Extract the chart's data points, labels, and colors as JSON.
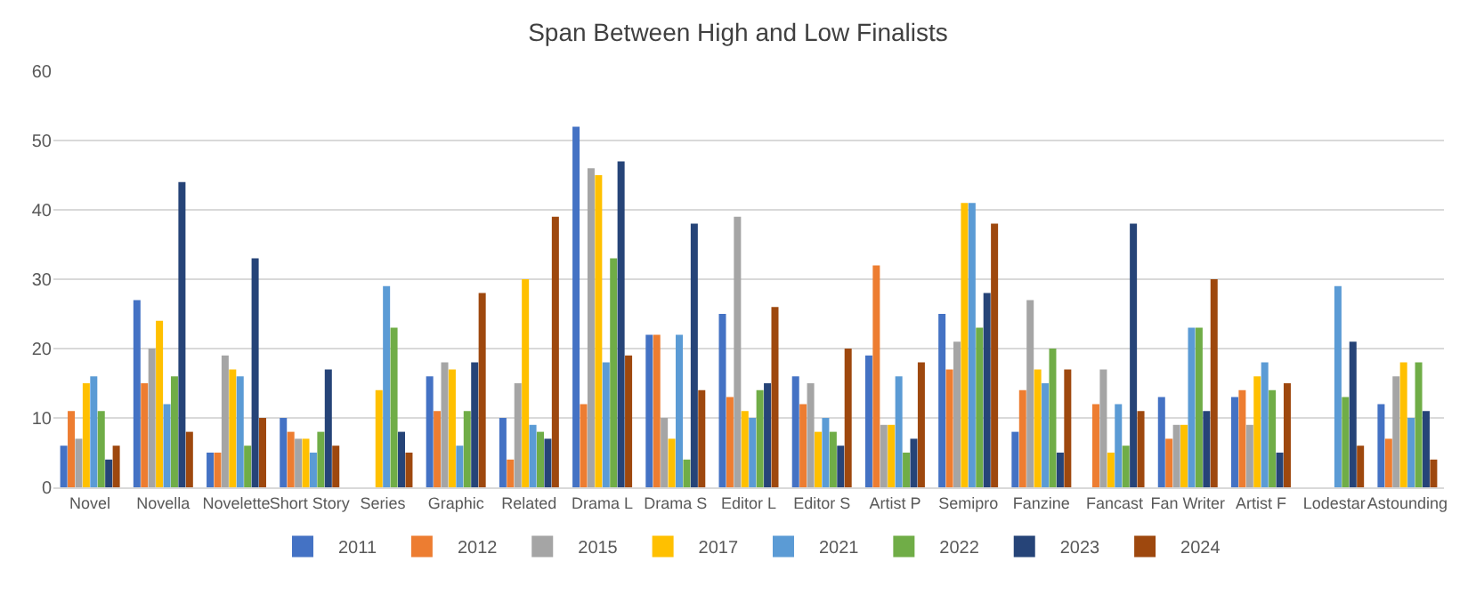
{
  "chart_data": {
    "type": "bar",
    "title": "Span Between High and Low Finalists",
    "categories": [
      "Novel",
      "Novella",
      "Novelette",
      "Short Story",
      "Series",
      "Graphic",
      "Related",
      "Drama L",
      "Drama S",
      "Editor L",
      "Editor S",
      "Artist P",
      "Semipro",
      "Fanzine",
      "Fancast",
      "Fan Writer",
      "Artist F",
      "Lodestar",
      "Astounding"
    ],
    "series": [
      {
        "name": "2011",
        "color": "#4472c4",
        "values": [
          6,
          27,
          5,
          10,
          null,
          16,
          10,
          52,
          22,
          25,
          16,
          19,
          25,
          8,
          null,
          13,
          13,
          null,
          12
        ]
      },
      {
        "name": "2012",
        "color": "#ed7d31",
        "values": [
          11,
          15,
          5,
          8,
          null,
          11,
          4,
          12,
          22,
          13,
          12,
          32,
          17,
          14,
          12,
          7,
          14,
          null,
          7
        ]
      },
      {
        "name": "2015",
        "color": "#a5a5a5",
        "values": [
          7,
          20,
          19,
          7,
          null,
          18,
          15,
          46,
          10,
          39,
          15,
          9,
          21,
          27,
          17,
          9,
          9,
          null,
          16
        ]
      },
      {
        "name": "2017",
        "color": "#ffc000",
        "values": [
          15,
          24,
          17,
          7,
          14,
          17,
          30,
          45,
          7,
          11,
          8,
          9,
          41,
          17,
          5,
          9,
          16,
          null,
          18
        ]
      },
      {
        "name": "2021",
        "color": "#5b9bd5",
        "values": [
          16,
          12,
          16,
          5,
          29,
          6,
          9,
          18,
          22,
          10,
          10,
          16,
          41,
          15,
          12,
          23,
          18,
          29,
          10
        ]
      },
      {
        "name": "2022",
        "color": "#70ad47",
        "values": [
          11,
          16,
          6,
          8,
          23,
          11,
          8,
          33,
          4,
          14,
          8,
          5,
          23,
          20,
          6,
          23,
          14,
          13,
          18
        ]
      },
      {
        "name": "2023",
        "color": "#264478",
        "values": [
          4,
          44,
          33,
          17,
          8,
          18,
          7,
          47,
          38,
          15,
          6,
          7,
          28,
          5,
          38,
          11,
          5,
          21,
          11
        ]
      },
      {
        "name": "2024",
        "color": "#9e480e",
        "values": [
          6,
          8,
          10,
          6,
          5,
          28,
          39,
          19,
          14,
          26,
          20,
          18,
          38,
          17,
          11,
          30,
          15,
          6,
          4
        ]
      }
    ],
    "ylim": [
      0,
      60
    ],
    "yticks": [
      0,
      10,
      20,
      30,
      40,
      50,
      60
    ],
    "grid": "y",
    "legend": "bottom"
  }
}
